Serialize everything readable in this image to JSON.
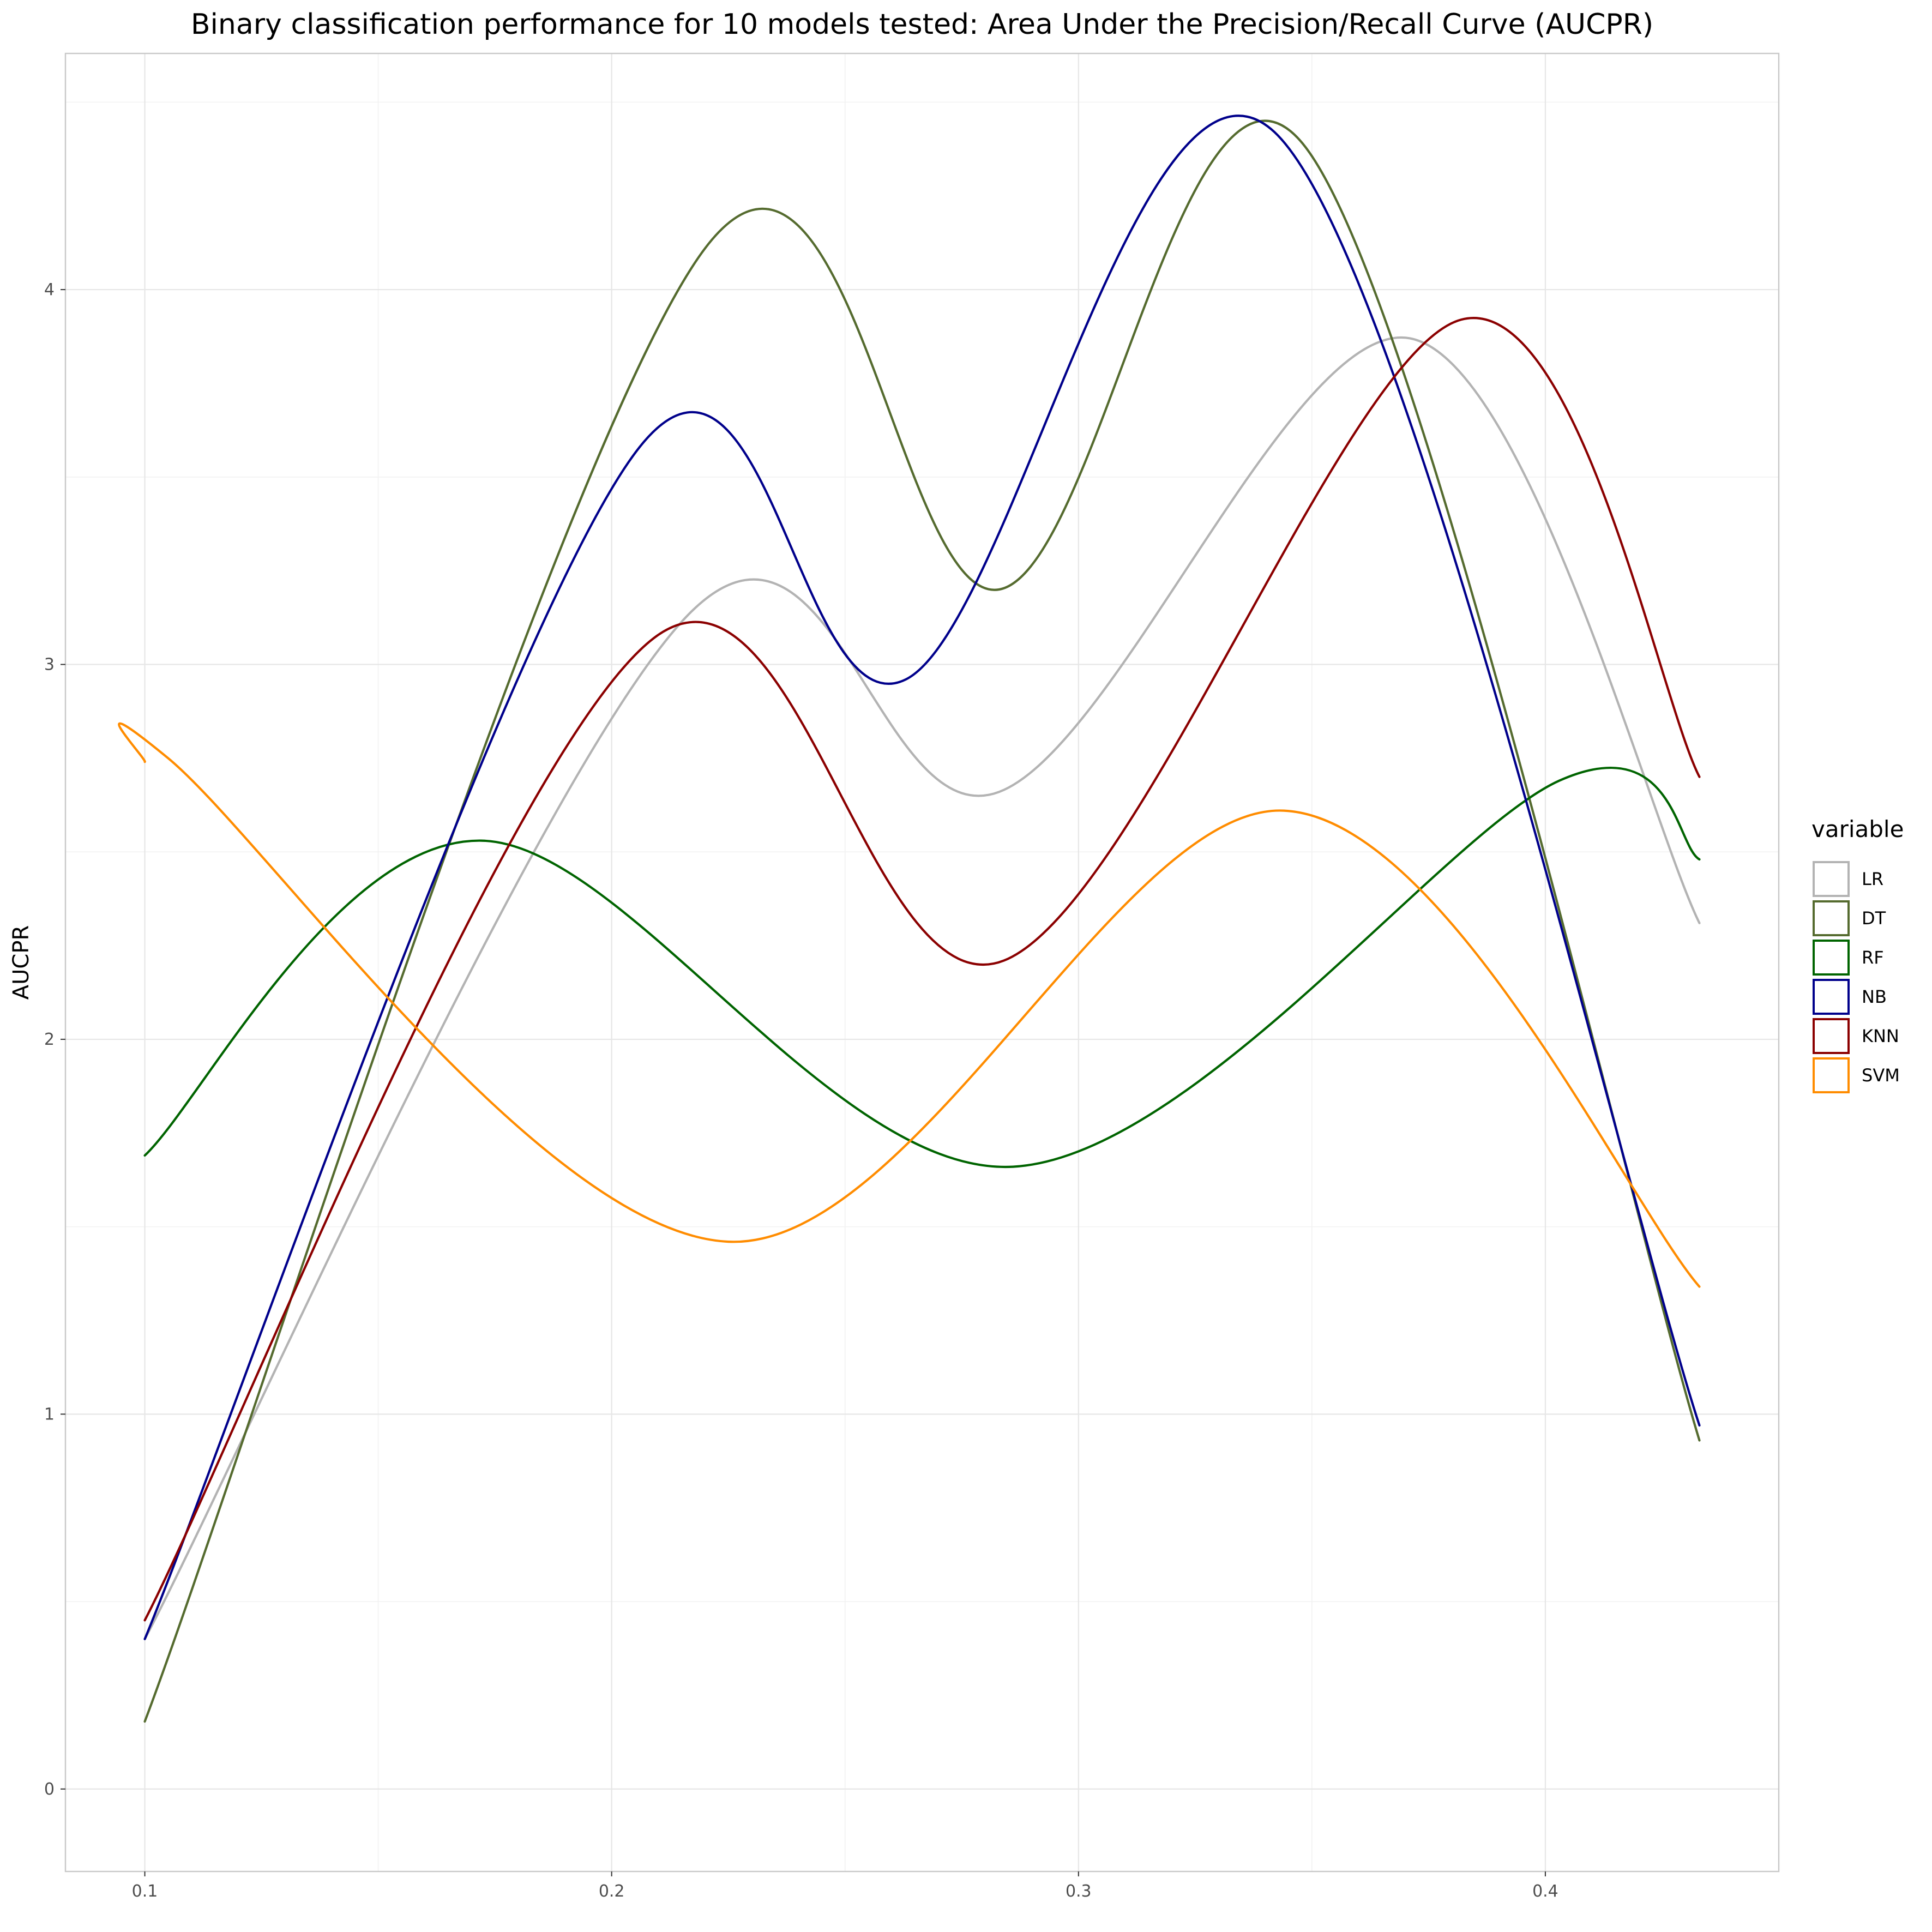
{
  "chart_data": {
    "type": "line",
    "title": "Binary classification performance for 10 models tested: Area Under the Precision/Recall Curve (AUCPR)",
    "xlabel": "",
    "ylabel": "AUCPR",
    "xlim": [
      0.083,
      0.45
    ],
    "ylim": [
      -0.22,
      4.63
    ],
    "x_ticks": [
      0.1,
      0.2,
      0.3,
      0.4
    ],
    "x_tick_labels": [
      "0.1",
      "0.2",
      "0.3",
      "0.4"
    ],
    "y_ticks": [
      0,
      1,
      2,
      3,
      4
    ],
    "y_tick_labels": [
      "0",
      "1",
      "2",
      "3",
      "4"
    ],
    "grid": true,
    "legend": {
      "title": "variable",
      "placement": "right"
    },
    "series": [
      {
        "name": "LR",
        "color": "#b3b3b3",
        "points": [
          [
            0.1,
            0.4
          ],
          [
            0.217,
            3.14
          ],
          [
            0.283,
            2.66
          ],
          [
            0.371,
            3.87
          ],
          [
            0.433,
            2.31
          ]
        ]
      },
      {
        "name": "DT",
        "color": "#556b2f",
        "points": [
          [
            0.1,
            0.18
          ],
          [
            0.22,
            4.11
          ],
          [
            0.283,
            3.2
          ],
          [
            0.348,
            4.39
          ],
          [
            0.433,
            0.93
          ]
        ]
      },
      {
        "name": "RF",
        "color": "#006400",
        "points": [
          [
            0.1,
            1.69
          ],
          [
            0.172,
            2.53
          ],
          [
            0.286,
            1.66
          ],
          [
            0.403,
            2.69
          ],
          [
            0.433,
            2.48
          ]
        ]
      },
      {
        "name": "NB",
        "color": "#00008b",
        "points": [
          [
            0.1,
            0.4
          ],
          [
            0.206,
            3.58
          ],
          [
            0.263,
            2.96
          ],
          [
            0.342,
            4.42
          ],
          [
            0.433,
            0.97
          ]
        ]
      },
      {
        "name": "KNN",
        "color": "#8b0000",
        "points": [
          [
            0.1,
            0.45
          ],
          [
            0.209,
            3.07
          ],
          [
            0.284,
            2.21
          ],
          [
            0.382,
            3.92
          ],
          [
            0.433,
            2.7
          ]
        ]
      },
      {
        "name": "SVM",
        "color": "#ff8c00",
        "points": [
          [
            0.1,
            2.74
          ],
          [
            0.105,
            2.75
          ],
          [
            0.225,
            1.46
          ],
          [
            0.344,
            2.61
          ],
          [
            0.433,
            1.34
          ]
        ]
      }
    ]
  }
}
